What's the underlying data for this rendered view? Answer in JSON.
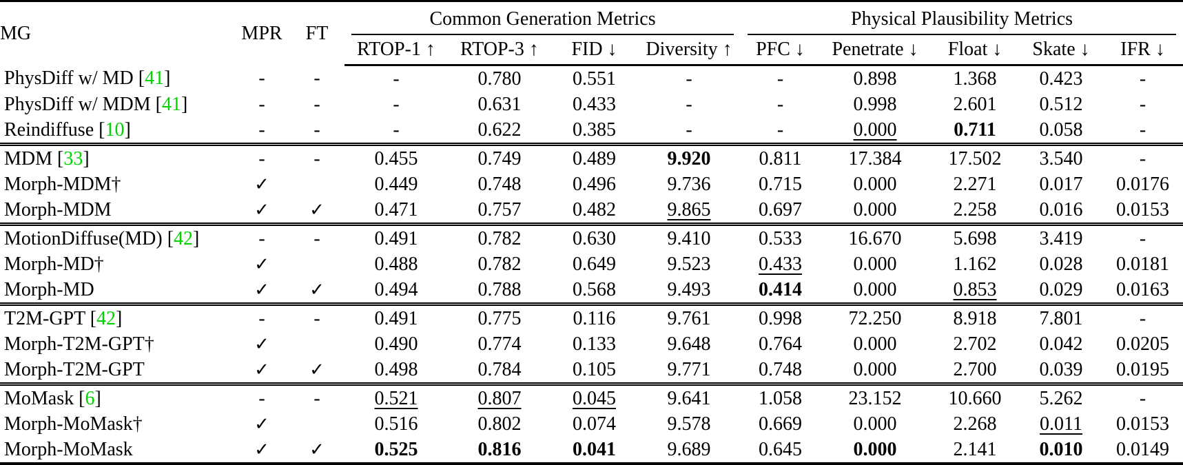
{
  "colors": {
    "citation_green": "#00d400",
    "text": "#000000",
    "background": "#ffffff"
  },
  "table": {
    "mg_header": "MG",
    "mpr_header": "MPR",
    "ft_header": "FT",
    "group_headers": [
      {
        "label": "Common Generation Metrics",
        "span": 4
      },
      {
        "label": "Physical Plausibility Metrics",
        "span": 5
      }
    ],
    "metric_headers": [
      "RTOP-1 ↑",
      "RTOP-3 ↑",
      "FID ↓",
      "Diversity ↑",
      "PFC ↓",
      "Penetrate ↓",
      "Float ↓",
      "Skate ↓",
      "IFR ↓"
    ],
    "check_glyph": "✓",
    "dash_glyph": "-",
    "groups": [
      {
        "rows": [
          {
            "mg": "PhysDiff w/ MD",
            "cite": "41",
            "mpr": "-",
            "ft": "-",
            "cells": [
              {
                "v": "-"
              },
              {
                "v": "0.780"
              },
              {
                "v": "0.551"
              },
              {
                "v": "-"
              },
              {
                "v": "-"
              },
              {
                "v": "0.898"
              },
              {
                "v": "1.368"
              },
              {
                "v": "0.423"
              },
              {
                "v": "-"
              }
            ]
          },
          {
            "mg": "PhysDiff w/ MDM",
            "cite": "41",
            "mpr": "-",
            "ft": "-",
            "cells": [
              {
                "v": "-"
              },
              {
                "v": "0.631"
              },
              {
                "v": "0.433"
              },
              {
                "v": "-"
              },
              {
                "v": "-"
              },
              {
                "v": "0.998"
              },
              {
                "v": "2.601"
              },
              {
                "v": "0.512"
              },
              {
                "v": "-"
              }
            ]
          },
          {
            "mg": "Reindiffuse",
            "cite": "10",
            "mpr": "-",
            "ft": "-",
            "cells": [
              {
                "v": "-"
              },
              {
                "v": "0.622"
              },
              {
                "v": "0.385"
              },
              {
                "v": "-"
              },
              {
                "v": "-"
              },
              {
                "v": "0.000",
                "s": "u"
              },
              {
                "v": "0.711",
                "s": "b"
              },
              {
                "v": "0.058"
              },
              {
                "v": "-"
              }
            ]
          }
        ]
      },
      {
        "rows": [
          {
            "mg": "MDM",
            "cite": "33",
            "mpr": "-",
            "ft": "-",
            "cells": [
              {
                "v": "0.455"
              },
              {
                "v": "0.749"
              },
              {
                "v": "0.489"
              },
              {
                "v": "9.920",
                "s": "b"
              },
              {
                "v": "0.811"
              },
              {
                "v": "17.384"
              },
              {
                "v": "17.502"
              },
              {
                "v": "3.540"
              },
              {
                "v": "-"
              }
            ]
          },
          {
            "mg": "Morph-MDM†",
            "cite": null,
            "mpr": "✓",
            "ft": "",
            "cells": [
              {
                "v": "0.449"
              },
              {
                "v": "0.748"
              },
              {
                "v": "0.496"
              },
              {
                "v": "9.736"
              },
              {
                "v": "0.715"
              },
              {
                "v": "0.000"
              },
              {
                "v": "2.271"
              },
              {
                "v": "0.017"
              },
              {
                "v": "0.0176"
              }
            ]
          },
          {
            "mg": "Morph-MDM",
            "cite": null,
            "mpr": "✓",
            "ft": "✓",
            "cells": [
              {
                "v": "0.471"
              },
              {
                "v": "0.757"
              },
              {
                "v": "0.482"
              },
              {
                "v": "9.865",
                "s": "u"
              },
              {
                "v": "0.697"
              },
              {
                "v": "0.000"
              },
              {
                "v": "2.258"
              },
              {
                "v": "0.016"
              },
              {
                "v": "0.0153"
              }
            ]
          }
        ]
      },
      {
        "rows": [
          {
            "mg": "MotionDiffuse(MD)",
            "cite": "42",
            "mpr": "-",
            "ft": "-",
            "cells": [
              {
                "v": "0.491"
              },
              {
                "v": "0.782"
              },
              {
                "v": "0.630"
              },
              {
                "v": "9.410"
              },
              {
                "v": "0.533"
              },
              {
                "v": "16.670"
              },
              {
                "v": "5.698"
              },
              {
                "v": "3.419"
              },
              {
                "v": "-"
              }
            ]
          },
          {
            "mg": "Morph-MD†",
            "cite": null,
            "mpr": "✓",
            "ft": "",
            "cells": [
              {
                "v": "0.488"
              },
              {
                "v": "0.782"
              },
              {
                "v": "0.649"
              },
              {
                "v": "9.523"
              },
              {
                "v": "0.433",
                "s": "u"
              },
              {
                "v": "0.000"
              },
              {
                "v": "1.162"
              },
              {
                "v": "0.028"
              },
              {
                "v": "0.0181"
              }
            ]
          },
          {
            "mg": "Morph-MD",
            "cite": null,
            "mpr": "✓",
            "ft": "✓",
            "cells": [
              {
                "v": "0.494"
              },
              {
                "v": "0.788"
              },
              {
                "v": "0.568"
              },
              {
                "v": "9.493"
              },
              {
                "v": "0.414",
                "s": "b"
              },
              {
                "v": "0.000"
              },
              {
                "v": "0.853",
                "s": "u"
              },
              {
                "v": "0.029"
              },
              {
                "v": "0.0163"
              }
            ]
          }
        ]
      },
      {
        "rows": [
          {
            "mg": "T2M-GPT",
            "cite": "42",
            "mpr": "-",
            "ft": "-",
            "cells": [
              {
                "v": "0.491"
              },
              {
                "v": "0.775"
              },
              {
                "v": "0.116"
              },
              {
                "v": "9.761"
              },
              {
                "v": "0.998"
              },
              {
                "v": "72.250"
              },
              {
                "v": "8.918"
              },
              {
                "v": "7.801"
              },
              {
                "v": "-"
              }
            ]
          },
          {
            "mg": "Morph-T2M-GPT†",
            "cite": null,
            "mpr": "✓",
            "ft": "",
            "cells": [
              {
                "v": "0.490"
              },
              {
                "v": "0.774"
              },
              {
                "v": "0.133"
              },
              {
                "v": "9.648"
              },
              {
                "v": "0.764"
              },
              {
                "v": "0.000"
              },
              {
                "v": "2.702"
              },
              {
                "v": "0.042"
              },
              {
                "v": "0.0205"
              }
            ]
          },
          {
            "mg": "Morph-T2M-GPT",
            "cite": null,
            "mpr": "✓",
            "ft": "✓",
            "cells": [
              {
                "v": "0.498"
              },
              {
                "v": "0.784"
              },
              {
                "v": "0.105"
              },
              {
                "v": "9.771"
              },
              {
                "v": "0.748"
              },
              {
                "v": "0.000"
              },
              {
                "v": "2.700"
              },
              {
                "v": "0.039"
              },
              {
                "v": "0.0195"
              }
            ]
          }
        ]
      },
      {
        "rows": [
          {
            "mg": "MoMask",
            "cite": "6",
            "mpr": "-",
            "ft": "-",
            "cells": [
              {
                "v": "0.521",
                "s": "u"
              },
              {
                "v": "0.807",
                "s": "u"
              },
              {
                "v": "0.045",
                "s": "u"
              },
              {
                "v": "9.641"
              },
              {
                "v": "1.058"
              },
              {
                "v": "23.152"
              },
              {
                "v": "10.660"
              },
              {
                "v": "5.262"
              },
              {
                "v": "-"
              }
            ]
          },
          {
            "mg": "Morph-MoMask†",
            "cite": null,
            "mpr": "✓",
            "ft": "",
            "cells": [
              {
                "v": "0.516"
              },
              {
                "v": "0.802"
              },
              {
                "v": "0.074"
              },
              {
                "v": "9.578"
              },
              {
                "v": "0.669"
              },
              {
                "v": "0.000"
              },
              {
                "v": "2.268"
              },
              {
                "v": "0.011",
                "s": "u"
              },
              {
                "v": "0.0153"
              }
            ]
          },
          {
            "mg": "Morph-MoMask",
            "cite": null,
            "mpr": "✓",
            "ft": "✓",
            "cells": [
              {
                "v": "0.525",
                "s": "b"
              },
              {
                "v": "0.816",
                "s": "b"
              },
              {
                "v": "0.041",
                "s": "b"
              },
              {
                "v": "9.689"
              },
              {
                "v": "0.645"
              },
              {
                "v": "0.000",
                "s": "b"
              },
              {
                "v": "2.141"
              },
              {
                "v": "0.010",
                "s": "b"
              },
              {
                "v": "0.0149"
              }
            ]
          }
        ]
      }
    ]
  }
}
